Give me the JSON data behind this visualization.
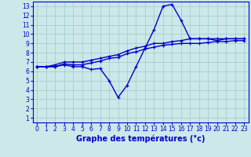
{
  "hours": [
    0,
    1,
    2,
    3,
    4,
    5,
    6,
    7,
    8,
    9,
    10,
    11,
    12,
    13,
    14,
    15,
    16,
    17,
    18,
    19,
    20,
    21,
    22,
    23
  ],
  "temp_volatile": [
    6.5,
    6.5,
    6.5,
    6.7,
    6.5,
    6.5,
    6.2,
    6.3,
    5.0,
    3.2,
    4.5,
    6.5,
    8.5,
    10.5,
    13.0,
    13.2,
    11.5,
    9.5,
    9.5,
    9.5,
    9.3,
    9.5,
    9.5,
    9.5
  ],
  "trend_upper": [
    6.5,
    6.5,
    6.7,
    7.0,
    7.0,
    7.0,
    7.2,
    7.4,
    7.6,
    7.8,
    8.2,
    8.5,
    8.7,
    9.0,
    9.0,
    9.2,
    9.3,
    9.5,
    9.5,
    9.5,
    9.5,
    9.5,
    9.5,
    9.5
  ],
  "trend_lower": [
    6.5,
    6.5,
    6.5,
    6.8,
    6.7,
    6.7,
    6.9,
    7.1,
    7.4,
    7.5,
    7.9,
    8.1,
    8.4,
    8.6,
    8.8,
    8.9,
    9.0,
    9.0,
    9.0,
    9.1,
    9.2,
    9.2,
    9.3,
    9.3
  ],
  "line_color": "#0000cc",
  "bg_color": "#cce8e8",
  "grid_color": "#99cccc",
  "xlabel": "Graphe des températures (°c)",
  "ylim": [
    0.5,
    13.5
  ],
  "xlim": [
    -0.5,
    23.5
  ],
  "yticks": [
    1,
    2,
    3,
    4,
    5,
    6,
    7,
    8,
    9,
    10,
    11,
    12,
    13
  ],
  "xticks": [
    0,
    1,
    2,
    3,
    4,
    5,
    6,
    7,
    8,
    9,
    10,
    11,
    12,
    13,
    14,
    15,
    16,
    17,
    18,
    19,
    20,
    21,
    22,
    23
  ],
  "tick_fontsize": 5.5,
  "xlabel_fontsize": 7,
  "xlabel_bold": true
}
